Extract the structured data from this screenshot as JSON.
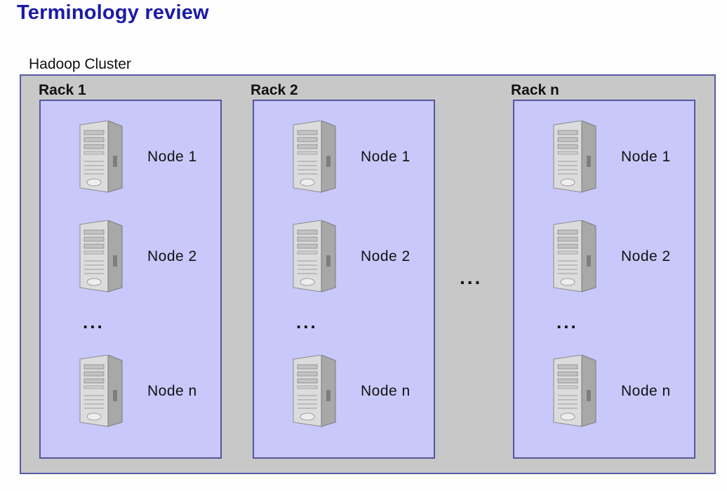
{
  "title": "Terminology review",
  "cluster": {
    "label": "Hadoop Cluster",
    "between_racks": "...",
    "racks": [
      {
        "label": "Rack 1",
        "nodes": [
          "Node 1",
          "Node 2",
          "Node n"
        ],
        "ellipsis": "..."
      },
      {
        "label": "Rack 2",
        "nodes": [
          "Node 1",
          "Node 2",
          "Node n"
        ],
        "ellipsis": "..."
      },
      {
        "label": "Rack n",
        "nodes": [
          "Node 1",
          "Node 2",
          "Node n"
        ],
        "ellipsis": "..."
      }
    ]
  },
  "colors": {
    "title": "#1a1aa6",
    "cluster_fill": "#c8c8c8",
    "rack_fill": "#c9c8fb",
    "rack_border": "#55559e"
  }
}
